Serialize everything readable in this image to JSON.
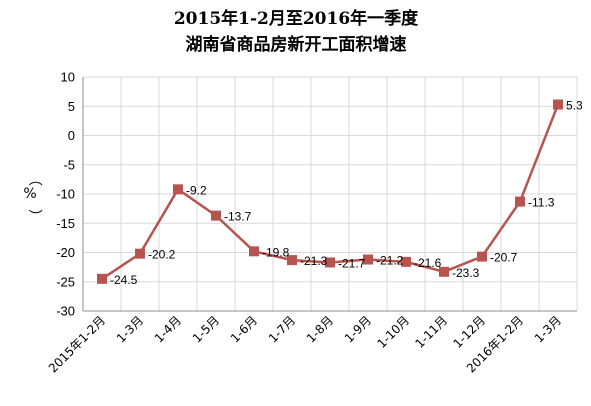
{
  "chart_data": {
    "type": "line",
    "title": [
      "2015年1-2月至2016年一季度",
      "湖南省商品房新开工面积增速"
    ],
    "ylabel": "%",
    "ylabel_paren": [
      "（",
      "）"
    ],
    "ylim": [
      -30,
      10
    ],
    "yticks": [
      10,
      5,
      0,
      -5,
      -10,
      -15,
      -20,
      -25,
      -30
    ],
    "grid": true,
    "categories": [
      "2015年1-2月",
      "1-3月",
      "1-4月",
      "1-5月",
      "1-6月",
      "1-7月",
      "1-8月",
      "1-9月",
      "1-10月",
      "1-11月",
      "1-12月",
      "2016年1-2月",
      "1-3月"
    ],
    "series": [
      {
        "color": "#b85450",
        "values": [
          -24.5,
          -20.2,
          -9.2,
          -13.7,
          -19.8,
          -21.3,
          -21.7,
          -21.2,
          -21.6,
          -23.3,
          -20.7,
          -11.3,
          5.3
        ]
      }
    ]
  }
}
